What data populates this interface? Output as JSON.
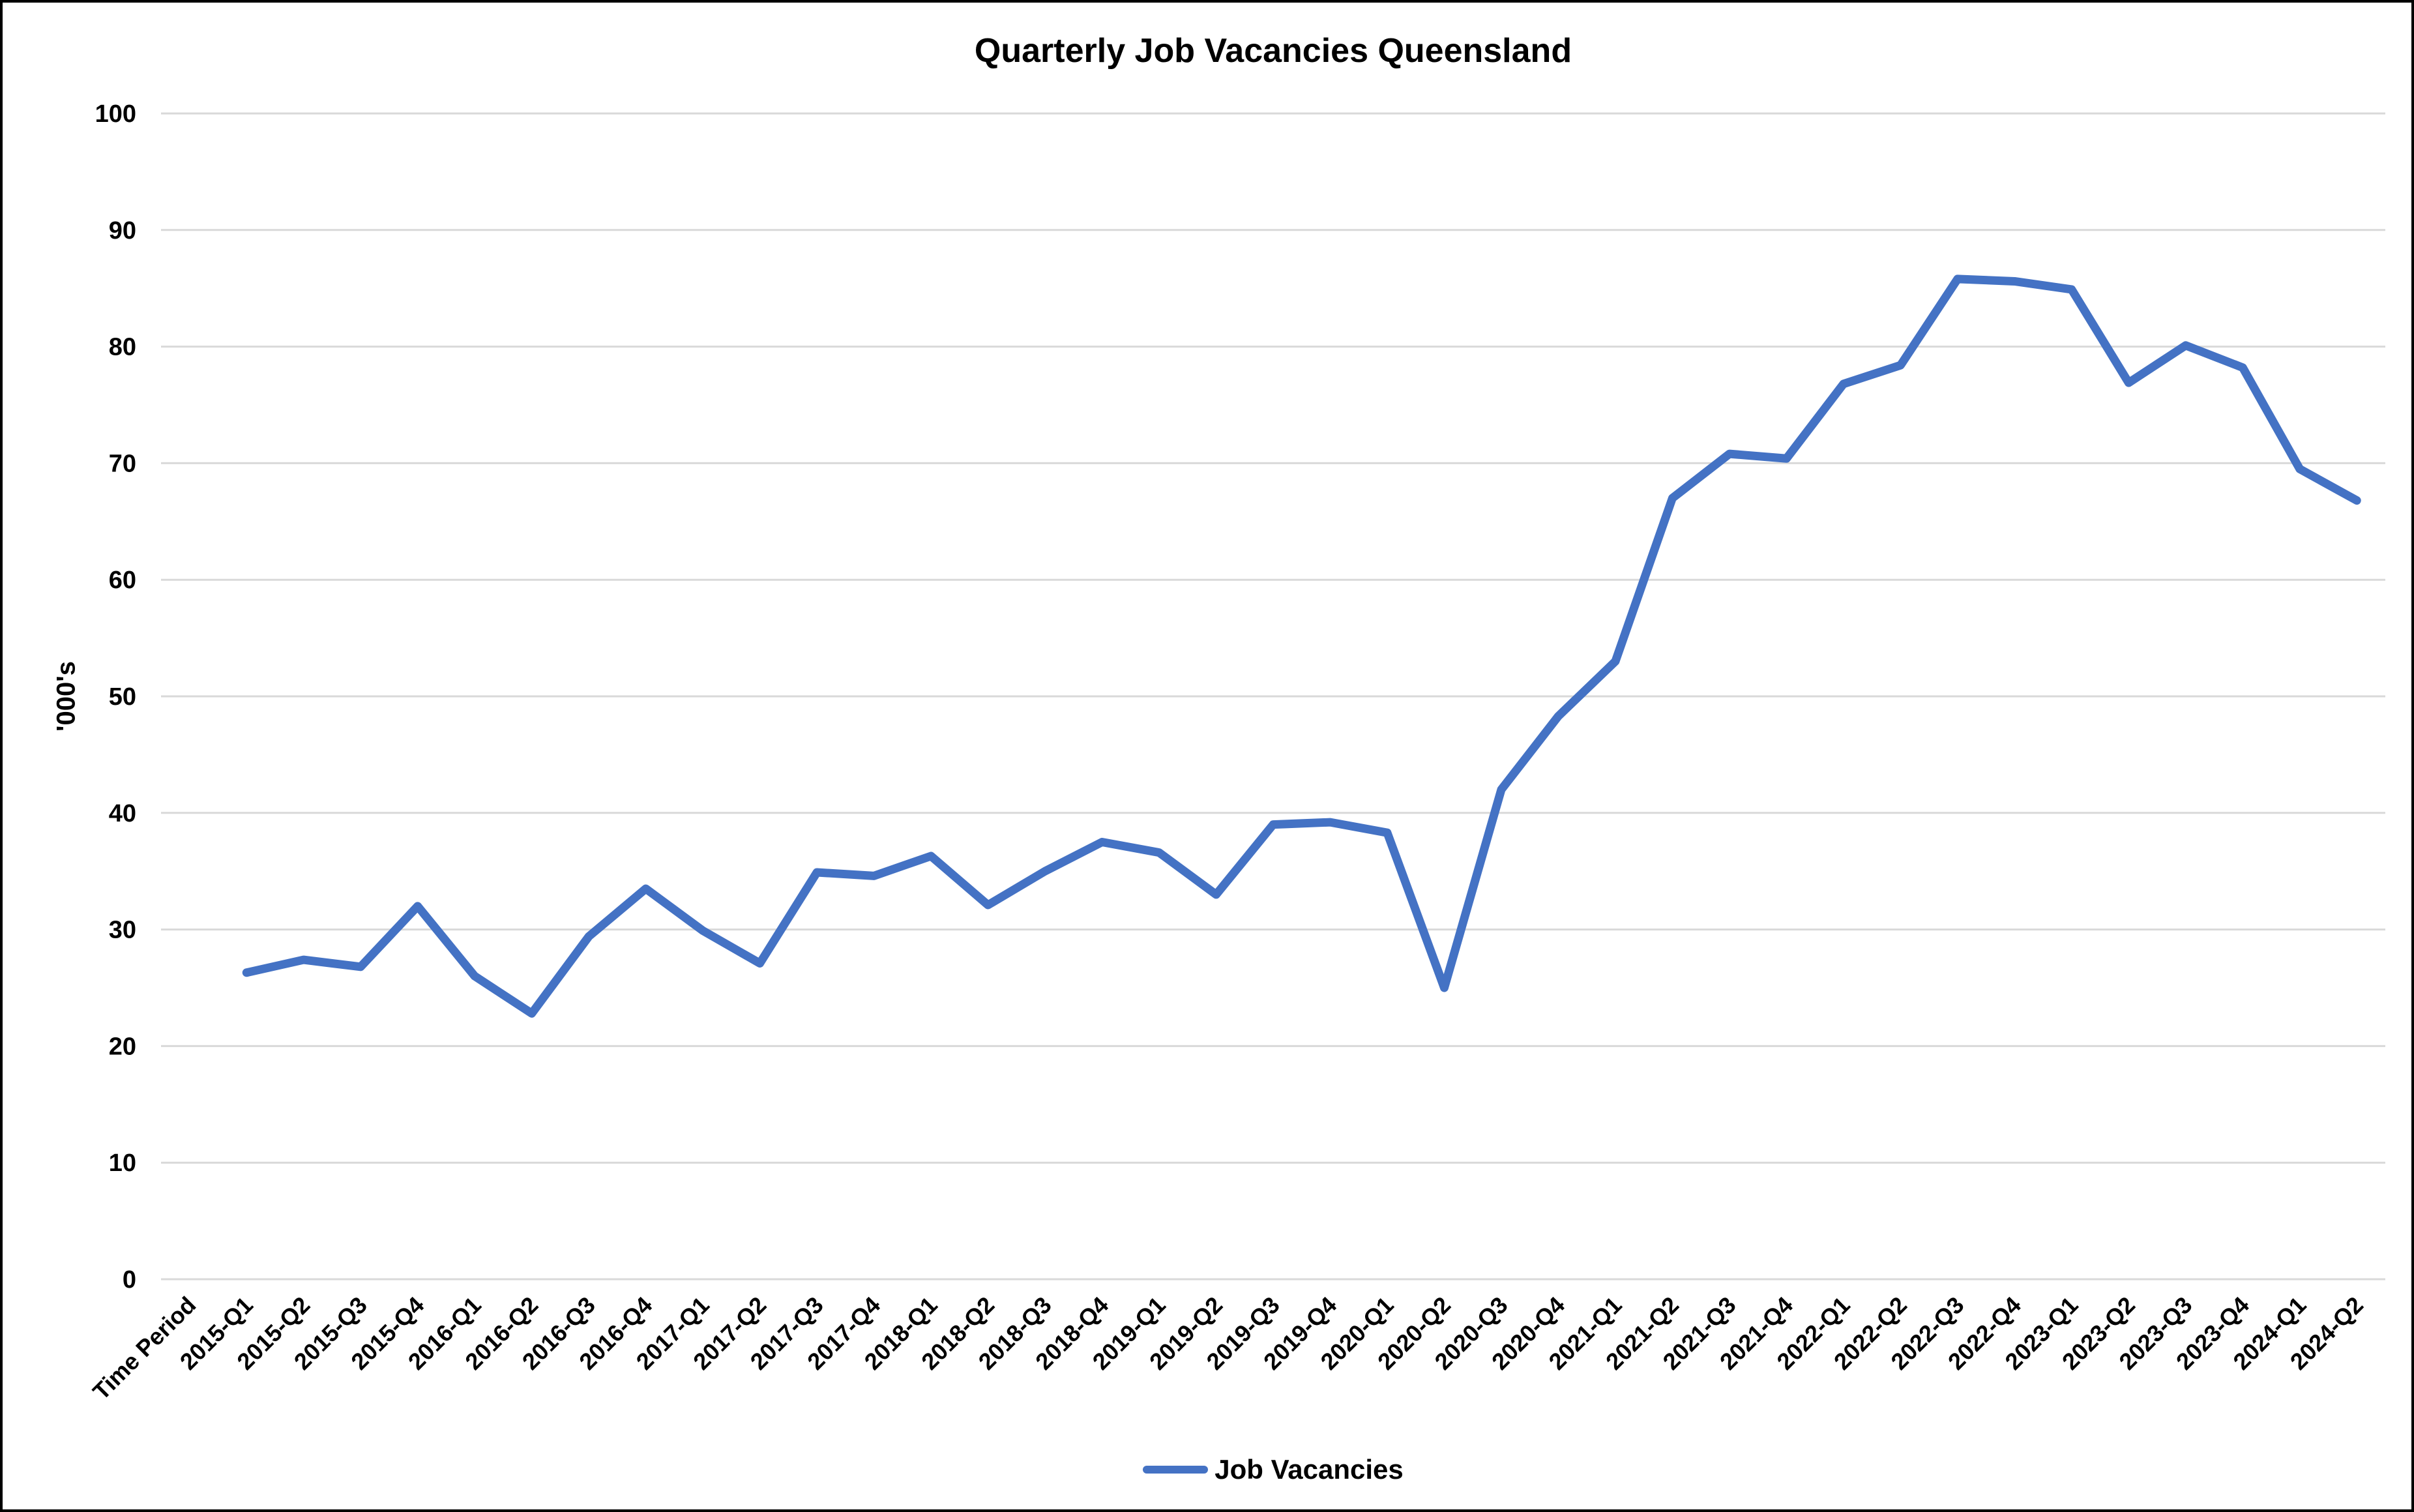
{
  "chart_data": {
    "type": "line",
    "title": "Quarterly Job Vacancies Queensland",
    "xlabel": "",
    "ylabel": "'000's",
    "ylim": [
      0,
      100
    ],
    "yticks": [
      0,
      10,
      20,
      30,
      40,
      50,
      60,
      70,
      80,
      90,
      100
    ],
    "grid": true,
    "legend_position": "bottom",
    "x_labels_rotation_deg": 45,
    "categories": [
      "Time Period",
      "2015-Q1",
      "2015-Q2",
      "2015-Q3",
      "2015-Q4",
      "2016-Q1",
      "2016-Q2",
      "2016-Q3",
      "2016-Q4",
      "2017-Q1",
      "2017-Q2",
      "2017-Q3",
      "2017-Q4",
      "2018-Q1",
      "2018-Q2",
      "2018-Q3",
      "2018-Q4",
      "2019-Q1",
      "2019-Q2",
      "2019-Q3",
      "2019-Q4",
      "2020-Q1",
      "2020-Q2",
      "2020-Q3",
      "2020-Q4",
      "2021-Q1",
      "2021-Q2",
      "2021-Q3",
      "2021-Q4",
      "2022-Q1",
      "2022-Q2",
      "2022-Q3",
      "2022-Q4",
      "2023-Q1",
      "2023-Q2",
      "2023-Q3",
      "2023-Q4",
      "2024-Q1",
      "2024-Q2"
    ],
    "series": [
      {
        "name": "Job Vacancies",
        "color": "#4472C4",
        "first_category_index": 1,
        "values": [
          26.3,
          27.4,
          26.8,
          32.0,
          26.0,
          22.8,
          29.4,
          33.5,
          29.9,
          27.1,
          34.9,
          34.6,
          36.3,
          32.1,
          35.0,
          37.5,
          36.6,
          33.0,
          39.0,
          39.2,
          38.3,
          25.0,
          42.0,
          48.3,
          53.0,
          67.0,
          70.8,
          70.4,
          76.8,
          78.4,
          85.8,
          85.6,
          84.9,
          76.9,
          80.1,
          78.2,
          69.5,
          66.8
        ]
      }
    ]
  },
  "styles": {
    "background": "#FFFFFF",
    "frame_border_color": "#000000",
    "grid_color": "#D9D9D9",
    "text_color": "#000000",
    "series_line_color": "#4472C4"
  }
}
